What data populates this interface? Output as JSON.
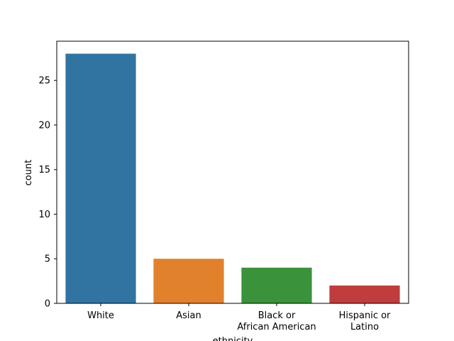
{
  "chart_data": {
    "type": "bar",
    "categories": [
      "White",
      "Asian",
      "Black or\nAfrican American",
      "Hispanic or\nLatino"
    ],
    "values": [
      28,
      5,
      4,
      2
    ],
    "colors": [
      "#3274a1",
      "#e1812c",
      "#3a923a",
      "#c03d3e"
    ],
    "title": "",
    "xlabel": "ethnicity",
    "ylabel": "count",
    "ylim": [
      0,
      29.4
    ],
    "yticks": [
      0,
      5,
      10,
      15,
      20,
      25
    ],
    "grid": false,
    "legend": "none"
  }
}
